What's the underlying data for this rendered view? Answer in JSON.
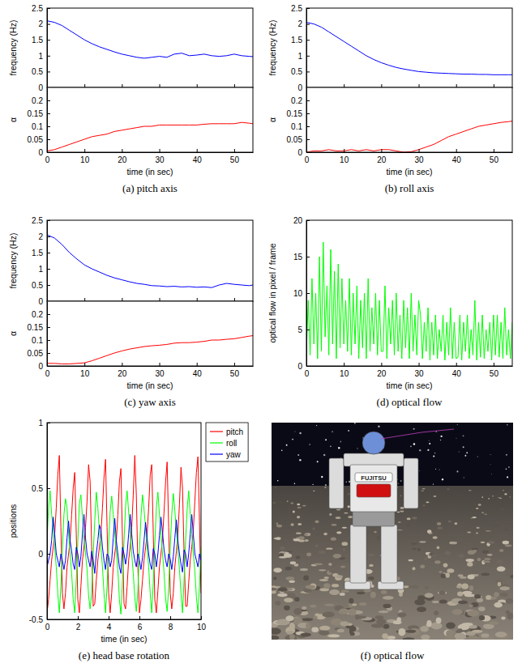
{
  "chart_data": [
    {
      "type": "line",
      "ylabel": "frequency (Hz)",
      "tick_labels": "y",
      "xlim": [
        0,
        55
      ],
      "ylim": [
        0,
        2.5
      ],
      "xticks": [
        0,
        10,
        20,
        30,
        40,
        50
      ],
      "yticks": [
        0,
        0.5,
        1,
        1.5,
        2,
        2.5
      ],
      "x": [
        0,
        2,
        4,
        6,
        8,
        10,
        12,
        14,
        16,
        18,
        20,
        22,
        24,
        26,
        28,
        30,
        32,
        34,
        36,
        38,
        40,
        42,
        44,
        46,
        48,
        50,
        52,
        54,
        55
      ],
      "series": [
        {
          "color": "#0000ff",
          "values": [
            2.1,
            2.05,
            1.95,
            1.8,
            1.65,
            1.5,
            1.38,
            1.28,
            1.2,
            1.12,
            1.05,
            1.0,
            0.95,
            0.92,
            0.95,
            0.98,
            0.95,
            1.05,
            1.08,
            1.0,
            1.02,
            1.05,
            1.0,
            0.98,
            1.0,
            1.05,
            1.0,
            0.98,
            0.97
          ]
        }
      ]
    },
    {
      "type": "line",
      "xlabel": "time (in sec)",
      "ylabel": "α",
      "caption": "(a) pitch axis",
      "xlim": [
        0,
        55
      ],
      "ylim": [
        0,
        0.25
      ],
      "xticks": [
        0,
        10,
        20,
        30,
        40,
        50
      ],
      "yticks": [
        0,
        0.05,
        0.1,
        0.15,
        0.2
      ],
      "x": [
        0,
        2,
        4,
        6,
        8,
        10,
        12,
        14,
        16,
        18,
        20,
        22,
        24,
        26,
        28,
        30,
        32,
        34,
        36,
        38,
        40,
        42,
        44,
        46,
        48,
        50,
        52,
        54,
        55
      ],
      "series": [
        {
          "color": "#ff0000",
          "values": [
            0.005,
            0.01,
            0.02,
            0.03,
            0.04,
            0.05,
            0.06,
            0.065,
            0.07,
            0.08,
            0.085,
            0.09,
            0.095,
            0.1,
            0.1,
            0.105,
            0.105,
            0.105,
            0.105,
            0.105,
            0.105,
            0.108,
            0.11,
            0.11,
            0.11,
            0.11,
            0.115,
            0.112,
            0.11
          ]
        }
      ]
    },
    {
      "type": "line",
      "ylabel": "frequency (Hz)",
      "tick_labels": "y",
      "xlim": [
        0,
        55
      ],
      "ylim": [
        0,
        2.5
      ],
      "xticks": [
        0,
        10,
        20,
        30,
        40,
        50
      ],
      "yticks": [
        0,
        0.5,
        1,
        1.5,
        2,
        2.5
      ],
      "x": [
        0,
        2,
        4,
        6,
        8,
        10,
        12,
        14,
        16,
        18,
        20,
        22,
        24,
        26,
        28,
        30,
        32,
        34,
        36,
        38,
        40,
        42,
        44,
        46,
        48,
        50,
        52,
        54,
        55
      ],
      "series": [
        {
          "color": "#0000ff",
          "values": [
            2.05,
            2.0,
            1.9,
            1.75,
            1.6,
            1.45,
            1.3,
            1.15,
            1.0,
            0.88,
            0.78,
            0.7,
            0.63,
            0.58,
            0.54,
            0.5,
            0.48,
            0.46,
            0.45,
            0.44,
            0.43,
            0.42,
            0.42,
            0.41,
            0.41,
            0.4,
            0.4,
            0.4,
            0.4
          ]
        }
      ]
    },
    {
      "type": "line",
      "xlabel": "time (in sec)",
      "ylabel": "α",
      "caption": "(b) roll axis",
      "xlim": [
        0,
        55
      ],
      "ylim": [
        0,
        0.25
      ],
      "xticks": [
        0,
        10,
        20,
        30,
        40,
        50
      ],
      "yticks": [
        0,
        0.05,
        0.1,
        0.15,
        0.2
      ],
      "x": [
        0,
        2,
        4,
        6,
        8,
        10,
        12,
        14,
        16,
        18,
        20,
        22,
        24,
        26,
        28,
        30,
        32,
        34,
        36,
        38,
        40,
        42,
        44,
        46,
        48,
        50,
        52,
        54,
        55
      ],
      "series": [
        {
          "color": "#ff0000",
          "values": [
            0.0,
            0.005,
            0.005,
            0.01,
            0.005,
            0.005,
            0.01,
            0.005,
            0.01,
            0.005,
            0.01,
            0.01,
            0.005,
            0.0,
            0.002,
            0.01,
            0.02,
            0.03,
            0.045,
            0.06,
            0.07,
            0.08,
            0.09,
            0.1,
            0.105,
            0.11,
            0.115,
            0.118,
            0.12
          ]
        }
      ]
    },
    {
      "type": "line",
      "ylabel": "frequency (Hz)",
      "tick_labels": "y",
      "xlim": [
        0,
        55
      ],
      "ylim": [
        0,
        2.5
      ],
      "xticks": [
        0,
        10,
        20,
        30,
        40,
        50
      ],
      "yticks": [
        0,
        0.5,
        1,
        1.5,
        2,
        2.5
      ],
      "x": [
        0,
        2,
        4,
        6,
        8,
        10,
        12,
        14,
        16,
        18,
        20,
        22,
        24,
        26,
        28,
        30,
        32,
        34,
        36,
        38,
        40,
        42,
        44,
        46,
        48,
        50,
        52,
        54,
        55
      ],
      "series": [
        {
          "color": "#0000ff",
          "values": [
            2.05,
            1.95,
            1.75,
            1.5,
            1.3,
            1.12,
            1.0,
            0.9,
            0.8,
            0.72,
            0.66,
            0.6,
            0.55,
            0.52,
            0.48,
            0.47,
            0.45,
            0.46,
            0.44,
            0.45,
            0.43,
            0.44,
            0.42,
            0.5,
            0.55,
            0.52,
            0.5,
            0.48,
            0.5
          ]
        }
      ]
    },
    {
      "type": "line",
      "xlabel": "time (in sec)",
      "ylabel": "α",
      "caption": "(c) yaw axis",
      "xlim": [
        0,
        55
      ],
      "ylim": [
        0,
        0.25
      ],
      "xticks": [
        0,
        10,
        20,
        30,
        40,
        50
      ],
      "yticks": [
        0,
        0.05,
        0.1,
        0.15,
        0.2
      ],
      "x": [
        0,
        2,
        4,
        6,
        8,
        10,
        12,
        14,
        16,
        18,
        20,
        22,
        24,
        26,
        28,
        30,
        32,
        34,
        36,
        38,
        40,
        42,
        44,
        46,
        48,
        50,
        52,
        54,
        55
      ],
      "series": [
        {
          "color": "#ff0000",
          "values": [
            0.01,
            0.01,
            0.008,
            0.008,
            0.01,
            0.012,
            0.02,
            0.03,
            0.04,
            0.05,
            0.058,
            0.065,
            0.07,
            0.075,
            0.078,
            0.08,
            0.083,
            0.088,
            0.09,
            0.09,
            0.092,
            0.095,
            0.1,
            0.1,
            0.103,
            0.105,
            0.11,
            0.115,
            0.117
          ]
        }
      ]
    },
    {
      "type": "line",
      "xlabel": "time (in sec)",
      "ylabel": "optical flow in pixel / frame",
      "caption": "(d) optical flow",
      "xlim": [
        0,
        55
      ],
      "ylim": [
        0,
        20
      ],
      "xticks": [
        0,
        10,
        20,
        30,
        40,
        50
      ],
      "yticks": [
        0,
        5,
        10,
        15,
        20
      ],
      "x": [
        0,
        0.5,
        1,
        1.5,
        2,
        2.5,
        3,
        3.5,
        4,
        4.5,
        5,
        5.5,
        6,
        6.5,
        7,
        7.5,
        8,
        8.5,
        9,
        9.5,
        10,
        10.5,
        11,
        11.5,
        12,
        12.5,
        13,
        13.5,
        14,
        14.5,
        15,
        15.5,
        16,
        16.5,
        17,
        17.5,
        18,
        18.5,
        19,
        19.5,
        20,
        20.5,
        21,
        21.5,
        22,
        22.5,
        23,
        23.5,
        24,
        24.5,
        25,
        25.5,
        26,
        26.5,
        27,
        27.5,
        28,
        28.5,
        29,
        29.5,
        30,
        30.5,
        31,
        31.5,
        32,
        32.5,
        33,
        33.5,
        34,
        34.5,
        35,
        35.5,
        36,
        36.5,
        37,
        37.5,
        38,
        38.5,
        39,
        39.5,
        40,
        40.5,
        41,
        41.5,
        42,
        42.5,
        43,
        43.5,
        44,
        44.5,
        45,
        45.5,
        46,
        46.5,
        47,
        47.5,
        48,
        48.5,
        49,
        49.5,
        50,
        50.5,
        51,
        51.5,
        52,
        52.5,
        53,
        53.5,
        54,
        54.5,
        55
      ],
      "series": [
        {
          "color": "#00ff00",
          "values": [
            2,
            9,
            1.5,
            12,
            3,
            10,
            1,
            15,
            2,
            17,
            4,
            11,
            1.5,
            16,
            3,
            13,
            1,
            14,
            2.5,
            12,
            3,
            9,
            2,
            12,
            1.5,
            10,
            3,
            11,
            1,
            9,
            2.5,
            10,
            1,
            12,
            2,
            8,
            3,
            10,
            1.5,
            9,
            2,
            2,
            11,
            1,
            8,
            3,
            9,
            1.5,
            10,
            2,
            7,
            1,
            9,
            2.5,
            8,
            1,
            10,
            2,
            7,
            1.5,
            9,
            7,
            1,
            6,
            2,
            8,
            0.8,
            6,
            1.5,
            7,
            1,
            5,
            2,
            7,
            0.8,
            6,
            1.5,
            8,
            1,
            6,
            1,
            1.2,
            7,
            0.8,
            6,
            2,
            7,
            1,
            5,
            1.5,
            9,
            0.8,
            6,
            1.2,
            7,
            1,
            5,
            2,
            6,
            0.8,
            7,
            1.5,
            7,
            1.2,
            6,
            1,
            8,
            1.5,
            5,
            1,
            6
          ]
        }
      ]
    },
    {
      "type": "line",
      "xlabel": "time (in sec)",
      "ylabel": "positions",
      "caption": "(e) head base rotation",
      "legend": "right",
      "xlim": [
        0,
        10
      ],
      "ylim": [
        -0.5,
        1
      ],
      "xticks": [
        0,
        2,
        4,
        6,
        8,
        10
      ],
      "yticks": [
        -0.5,
        0,
        0.5,
        1
      ],
      "x": [
        0,
        0.1,
        0.2,
        0.3,
        0.4,
        0.5,
        0.6,
        0.7,
        0.8,
        0.9,
        1,
        1.1,
        1.2,
        1.3,
        1.4,
        1.5,
        1.6,
        1.7,
        1.8,
        1.9,
        2,
        2.1,
        2.2,
        2.3,
        2.4,
        2.5,
        2.6,
        2.7,
        2.8,
        2.9,
        3,
        3.1,
        3.2,
        3.3,
        3.4,
        3.5,
        3.6,
        3.7,
        3.8,
        3.9,
        4,
        4.1,
        4.2,
        4.3,
        4.4,
        4.5,
        4.6,
        4.7,
        4.8,
        4.9,
        5,
        5.1,
        5.2,
        5.3,
        5.4,
        5.5,
        5.6,
        5.7,
        5.8,
        5.9,
        6,
        6.1,
        6.2,
        6.3,
        6.4,
        6.5,
        6.6,
        6.7,
        6.8,
        6.9,
        7,
        7.1,
        7.2,
        7.3,
        7.4,
        7.5,
        7.6,
        7.7,
        7.8,
        7.9,
        8,
        8.1,
        8.2,
        8.3,
        8.4,
        8.5,
        8.6,
        8.7,
        8.8,
        8.9,
        9,
        9.1,
        9.2,
        9.3,
        9.4,
        9.5,
        9.6,
        9.7,
        9.8,
        9.9,
        10
      ],
      "series": [
        {
          "name": "pitch",
          "color": "#ff0000",
          "values": [
            -0.45,
            -0.35,
            -0.2,
            -0.05,
            0.05,
            0.15,
            0.35,
            0.6,
            0.75,
            0.2,
            -0.3,
            -0.42,
            -0.3,
            -0.1,
            0.0,
            0.1,
            0.3,
            0.5,
            0.62,
            0.15,
            -0.35,
            -0.45,
            -0.25,
            -0.05,
            0.05,
            0.2,
            0.4,
            0.68,
            0.55,
            0.05,
            -0.4,
            -0.38,
            -0.2,
            -0.05,
            0.05,
            0.15,
            0.35,
            0.58,
            0.72,
            0.2,
            -0.3,
            -0.45,
            -0.3,
            -0.1,
            0.0,
            0.1,
            0.3,
            0.55,
            0.65,
            0.1,
            -0.38,
            -0.42,
            -0.25,
            -0.05,
            0.05,
            0.2,
            0.45,
            0.75,
            0.45,
            -0.1,
            -0.45,
            -0.35,
            -0.2,
            -0.05,
            0.05,
            0.15,
            0.35,
            0.6,
            0.68,
            0.15,
            -0.35,
            -0.45,
            -0.28,
            -0.1,
            0.0,
            0.12,
            0.32,
            0.55,
            0.7,
            0.2,
            -0.3,
            -0.42,
            -0.3,
            -0.1,
            0.02,
            0.15,
            0.38,
            0.66,
            0.5,
            0.0,
            -0.4,
            -0.4,
            -0.22,
            -0.05,
            0.05,
            0.18,
            0.4,
            0.62,
            0.74,
            0.25,
            -0.3
          ]
        },
        {
          "name": "roll",
          "color": "#00ff00",
          "values": [
            0.1,
            0.35,
            0.48,
            0.3,
            0.2,
            0.05,
            -0.1,
            -0.3,
            -0.45,
            -0.25,
            0.05,
            0.3,
            0.42,
            0.35,
            0.15,
            0.0,
            -0.15,
            -0.35,
            -0.45,
            -0.2,
            0.1,
            0.38,
            0.45,
            0.28,
            0.12,
            0.0,
            -0.12,
            -0.32,
            -0.42,
            -0.3,
            0.0,
            0.25,
            0.47,
            0.35,
            0.18,
            0.05,
            -0.1,
            -0.3,
            -0.45,
            -0.25,
            0.08,
            0.32,
            0.44,
            0.3,
            0.15,
            0.02,
            -0.12,
            -0.35,
            -0.46,
            -0.2,
            0.1,
            0.36,
            0.48,
            0.32,
            0.16,
            0.0,
            -0.15,
            -0.33,
            -0.44,
            -0.28,
            0.02,
            0.28,
            0.45,
            0.34,
            0.2,
            0.05,
            -0.1,
            -0.3,
            -0.45,
            -0.22,
            0.08,
            0.35,
            0.47,
            0.3,
            0.14,
            0.0,
            -0.14,
            -0.34,
            -0.44,
            -0.26,
            0.05,
            0.3,
            0.46,
            0.33,
            0.18,
            0.03,
            -0.12,
            -0.3,
            -0.45,
            -0.2,
            0.1,
            0.34,
            0.48,
            0.3,
            0.15,
            0.0,
            -0.13,
            -0.33,
            -0.45,
            -0.25,
            0.05
          ]
        },
        {
          "name": "yaw",
          "color": "#0000ff",
          "values": [
            -0.1,
            -0.05,
            0.0,
            0.1,
            0.28,
            0.15,
            0.0,
            -0.05,
            -0.1,
            0.0,
            -0.05,
            -0.12,
            -0.05,
            0.12,
            0.25,
            0.1,
            0.02,
            -0.08,
            -0.12,
            0.05,
            0.0,
            -0.1,
            -0.02,
            0.15,
            0.3,
            0.12,
            0.0,
            -0.05,
            -0.1,
            0.02,
            -0.05,
            -0.15,
            0.0,
            0.1,
            0.22,
            0.18,
            0.05,
            -0.05,
            -0.12,
            0.0,
            -0.02,
            -0.1,
            -0.05,
            0.12,
            0.27,
            0.1,
            0.0,
            -0.1,
            -0.15,
            0.05,
            0.0,
            -0.08,
            0.0,
            0.15,
            0.3,
            0.15,
            0.02,
            -0.05,
            -0.1,
            0.0,
            -0.05,
            -0.12,
            -0.03,
            0.1,
            0.24,
            0.12,
            0.0,
            -0.08,
            -0.12,
            0.04,
            0.0,
            -0.1,
            0.0,
            0.14,
            0.28,
            0.16,
            0.03,
            -0.05,
            -0.1,
            0.0,
            -0.04,
            -0.12,
            -0.02,
            0.12,
            0.26,
            0.1,
            0.0,
            -0.08,
            -0.14,
            0.03,
            0.0,
            -0.1,
            0.0,
            0.15,
            0.3,
            0.15,
            0.0,
            -0.05,
            -0.1,
            0.0,
            -0.05
          ]
        }
      ]
    }
  ],
  "image_panel": {
    "caption": "(f) optical flow",
    "labels": [
      "FUJITSU"
    ]
  }
}
